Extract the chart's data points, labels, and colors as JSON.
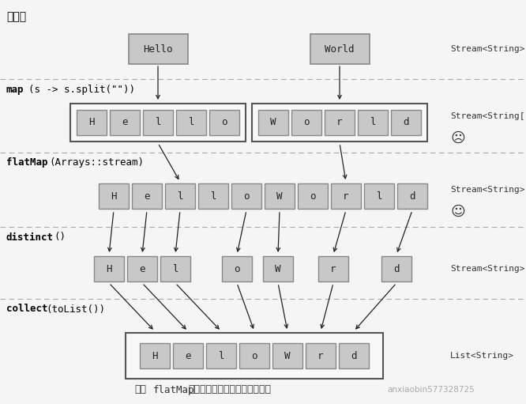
{
  "title_top": "单词流",
  "bg_color": "#f5f5f5",
  "box_fill": "#c8c8c8",
  "box_edge": "#888888",
  "outer_fill": "#f0f0f0",
  "outer_edge": "#555555",
  "dash_color": "#aaaaaa",
  "arrow_color": "#222222",
  "sad_face": "☹",
  "happy_face": "☺",
  "label_stream_string": "Stream<String>",
  "label_stream_array": "Stream<String[]>",
  "label_list": "List<String>",
  "row2_hello": [
    "H",
    "e",
    "l",
    "l",
    "o"
  ],
  "row2_world": [
    "W",
    "o",
    "r",
    "l",
    "d"
  ],
  "row3_chars": [
    "H",
    "e",
    "l",
    "l",
    "o",
    "W",
    "o",
    "r",
    "l",
    "d"
  ],
  "row4_chars": [
    "H",
    "e",
    "l",
    "o",
    "W",
    "r",
    "d"
  ],
  "row5_chars": [
    "H",
    "e",
    "l",
    "o",
    "W",
    "r",
    "d"
  ],
  "watermark": "anxiaobin577328725",
  "bottom_text1": "使用",
  "bottom_code": "flatMap",
  "bottom_text2": "找出单词列表中各不相同的字符"
}
